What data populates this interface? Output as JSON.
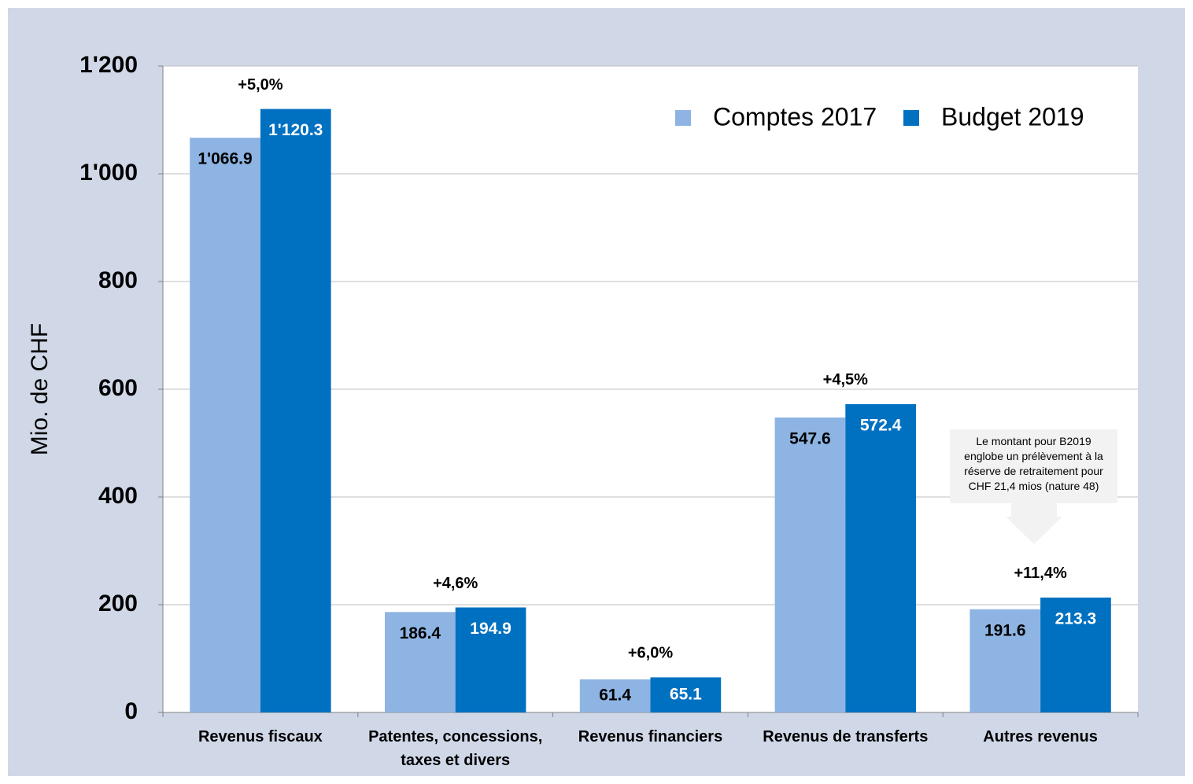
{
  "chart_data": {
    "type": "bar",
    "y_axis_label": "Mio. de CHF",
    "categories": [
      "Revenus fiscaux",
      "Patentes, concessions, taxes et divers",
      "Revenus financiers",
      "Revenus de transferts",
      "Autres revenus"
    ],
    "series": [
      {
        "name": "Comptes 2017",
        "color": "#8eb4e3",
        "values": [
          1066.9,
          186.4,
          61.4,
          547.6,
          191.6
        ],
        "value_labels": [
          "1'066.9",
          "186.4",
          "61.4",
          "547.6",
          "191.6"
        ]
      },
      {
        "name": "Budget 2019",
        "color": "#0070c0",
        "values": [
          1120.3,
          194.9,
          65.1,
          572.4,
          213.3
        ],
        "value_labels": [
          "1'120.3",
          "194.9",
          "65.1",
          "572.4",
          "213.3"
        ]
      }
    ],
    "annotations": [
      "+5,0%",
      "+4,6%",
      "+6,0%",
      "+4,5%",
      "+11,4%"
    ],
    "note": "Le montant pour B2019 englobe un prélèvement à la réserve de retraitement pour CHF 21,4 mios (nature 48)",
    "ylim": [
      0,
      1200
    ],
    "yticks": [
      0,
      200,
      400,
      600,
      800,
      {
        "value": 1000,
        "label": "1'000"
      },
      {
        "value": 1200,
        "label": "1'200"
      }
    ],
    "grid": true,
    "legend": "top-right"
  }
}
